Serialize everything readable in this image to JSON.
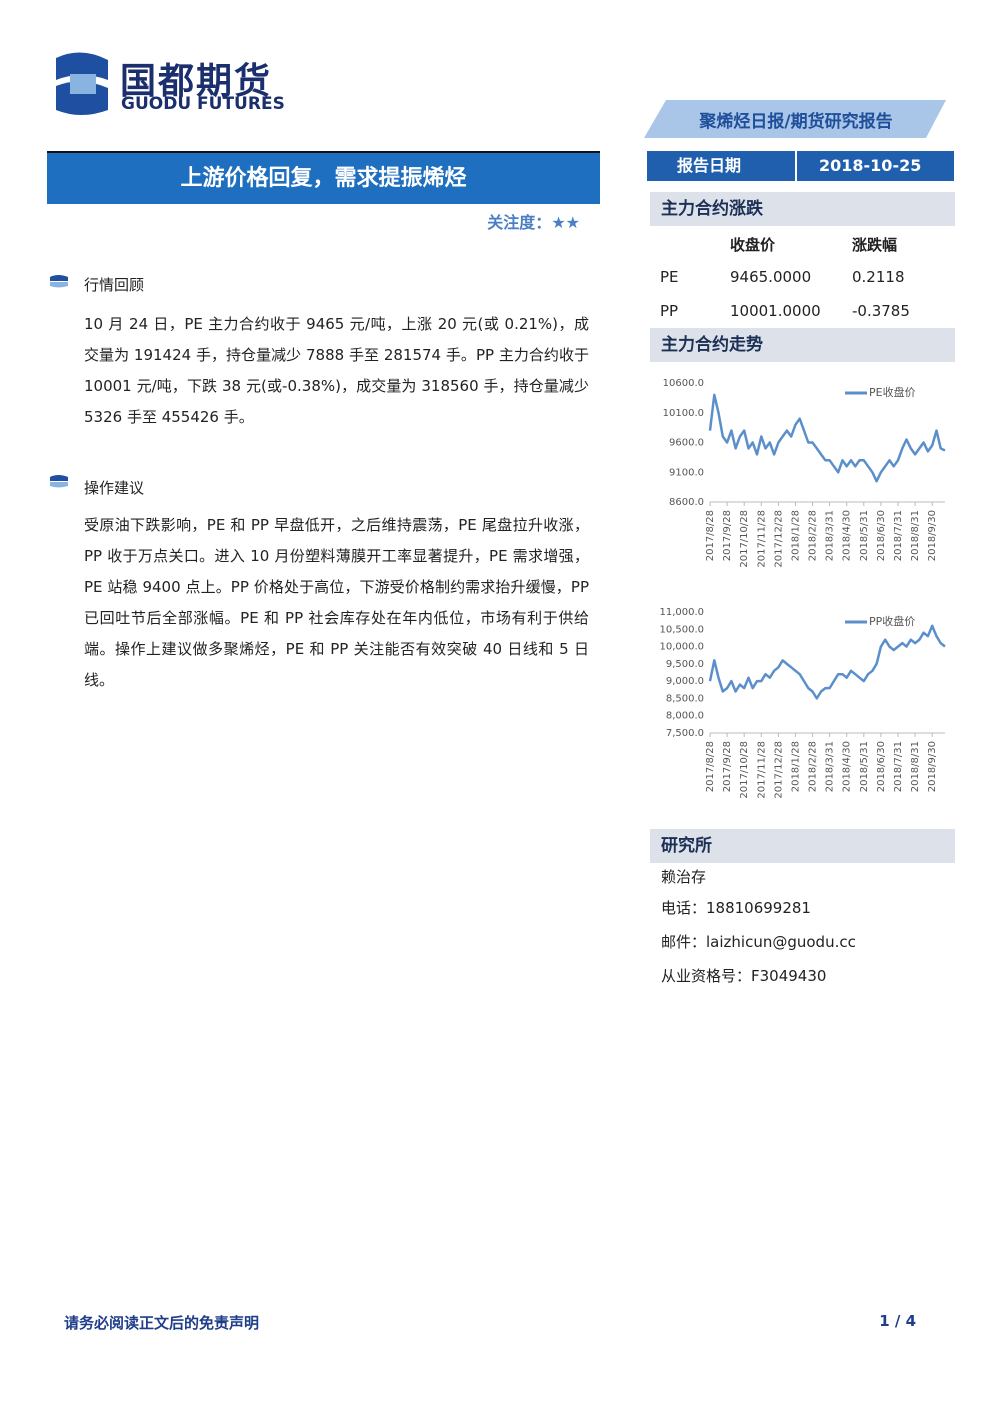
{
  "header": {
    "logo_cn": "国都期货",
    "logo_en": "GUODU FUTURES",
    "report_type": "聚烯烃日报/期货研究报告"
  },
  "title": "上游价格回复，需求提振烯烃",
  "attention_label": "关注度：",
  "attention_stars": "★★",
  "sections": [
    {
      "heading": "行情回顾",
      "body": "10 月 24 日，PE 主力合约收于 9465 元/吨，上涨 20 元(或 0.21%)，成交量为 191424 手，持仓量减少 7888 手至 281574 手。PP 主力合约收于 10001 元/吨，下跌 38 元(或-0.38%)，成交量为 318560 手，持仓量减少 5326 手至 455426 手。"
    },
    {
      "heading": "操作建议",
      "body": "受原油下跌影响，PE 和 PP 早盘低开，之后维持震荡，PE 尾盘拉升收涨，PP 收于万点关口。进入 10 月份塑料薄膜开工率显著提升，PE 需求增强，PE 站稳 9400 点上。PP 价格处于高位，下游受价格制约需求抬升缓慢，PP 已回吐节后全部涨幅。PE 和 PP 社会库存处在年内低位，市场有利于供给端。操作上建议做多聚烯烃，PE 和 PP 关注能否有效突破 40 日线和 5 日线。"
    }
  ],
  "sidebar": {
    "date_label": "报告日期",
    "date": "2018-10-25",
    "table_title": "主力合约涨跌",
    "table": {
      "header": [
        "收盘价",
        "涨跌幅"
      ],
      "rows": [
        [
          "PE",
          "9465.0000",
          "0.2118"
        ],
        [
          "PP",
          "10001.0000",
          "-0.3785"
        ]
      ]
    },
    "trend_title": "主力合约走势",
    "research": {
      "title": "研究所",
      "name": "赖治存",
      "phone": "电话：18810699281",
      "email": "邮件：laizhicun@guodu.cc",
      "license": "从业资格号：F3049430"
    }
  },
  "footer": {
    "disclaimer": "请务必阅读正文后的免责声明",
    "page": "1 / 4"
  },
  "chart_data": [
    {
      "type": "line",
      "legend": "upper-right",
      "categories": [
        "2017/8/28",
        null,
        null,
        null,
        "2017/9/28",
        null,
        null,
        null,
        "2017/10/28",
        null,
        null,
        null,
        "2017/11/28",
        null,
        null,
        null,
        "2017/12/28",
        null,
        null,
        null,
        "2018/1/28",
        null,
        null,
        null,
        "2018/2/28",
        null,
        null,
        null,
        "2018/3/31",
        null,
        null,
        null,
        "2018/4/30",
        null,
        null,
        null,
        "2018/5/31",
        null,
        null,
        null,
        "2018/6/30",
        null,
        null,
        null,
        "2018/7/31",
        null,
        null,
        null,
        "2018/8/31",
        null,
        null,
        null,
        "2018/9/30",
        null,
        null,
        null
      ],
      "series": [
        {
          "name": "PE收盘价",
          "color": "#5b8fcb",
          "values": [
            9800,
            10400,
            10100,
            9700,
            9600,
            9800,
            9500,
            9700,
            9800,
            9500,
            9600,
            9400,
            9700,
            9500,
            9600,
            9400,
            9600,
            9700,
            9800,
            9700,
            9900,
            10000,
            9800,
            9600,
            9600,
            9500,
            9400,
            9300,
            9300,
            9200,
            9100,
            9300,
            9200,
            9300,
            9200,
            9300,
            9300,
            9200,
            9100,
            8950,
            9100,
            9200,
            9300,
            9200,
            9300,
            9500,
            9650,
            9500,
            9400,
            9500,
            9600,
            9450,
            9550,
            9800,
            9500,
            9465
          ]
        }
      ],
      "ylim": [
        8600,
        10600
      ],
      "yticks": [
        {
          "value": 8600,
          "label": "8600.0"
        },
        {
          "value": 9100,
          "label": "9100.0"
        },
        {
          "value": 9600,
          "label": "9600.0"
        },
        {
          "value": 10100,
          "label": "10100.0"
        },
        {
          "value": 10600,
          "label": "10600.0"
        }
      ]
    },
    {
      "type": "line",
      "legend": "upper-right",
      "categories": [
        "2017/8/28",
        null,
        null,
        null,
        "2017/9/28",
        null,
        null,
        null,
        "2017/10/28",
        null,
        null,
        null,
        "2017/11/28",
        null,
        null,
        null,
        "2017/12/28",
        null,
        null,
        null,
        "2018/1/28",
        null,
        null,
        null,
        "2018/2/28",
        null,
        null,
        null,
        "2018/3/31",
        null,
        null,
        null,
        "2018/4/30",
        null,
        null,
        null,
        "2018/5/31",
        null,
        null,
        null,
        "2018/6/30",
        null,
        null,
        null,
        "2018/7/31",
        null,
        null,
        null,
        "2018/8/31",
        null,
        null,
        null,
        "2018/9/30",
        null,
        null,
        null
      ],
      "series": [
        {
          "name": "PP收盘价",
          "color": "#5b8fcb",
          "values": [
            9000,
            9600,
            9100,
            8700,
            8800,
            9000,
            8700,
            8900,
            8800,
            9100,
            8800,
            9000,
            9000,
            9200,
            9100,
            9300,
            9400,
            9600,
            9500,
            9400,
            9300,
            9200,
            9000,
            8800,
            8700,
            8500,
            8700,
            8800,
            8800,
            9000,
            9200,
            9200,
            9100,
            9300,
            9200,
            9100,
            9000,
            9200,
            9300,
            9500,
            10000,
            10200,
            10000,
            9900,
            10000,
            10100,
            10000,
            10200,
            10100,
            10200,
            10400,
            10300,
            10600,
            10300,
            10100,
            10001
          ]
        }
      ],
      "ylim": [
        7500,
        11000
      ],
      "yticks": [
        {
          "value": 7500,
          "label": "7,500.0"
        },
        {
          "value": 8000,
          "label": "8,000.0"
        },
        {
          "value": 8500,
          "label": "8,500.0"
        },
        {
          "value": 9000,
          "label": "9,000.0"
        },
        {
          "value": 9500,
          "label": "9,500.0"
        },
        {
          "value": 10000,
          "label": "10,000.0"
        },
        {
          "value": 10500,
          "label": "10,500.0"
        },
        {
          "value": 11000,
          "label": "11,000.0"
        }
      ]
    }
  ]
}
